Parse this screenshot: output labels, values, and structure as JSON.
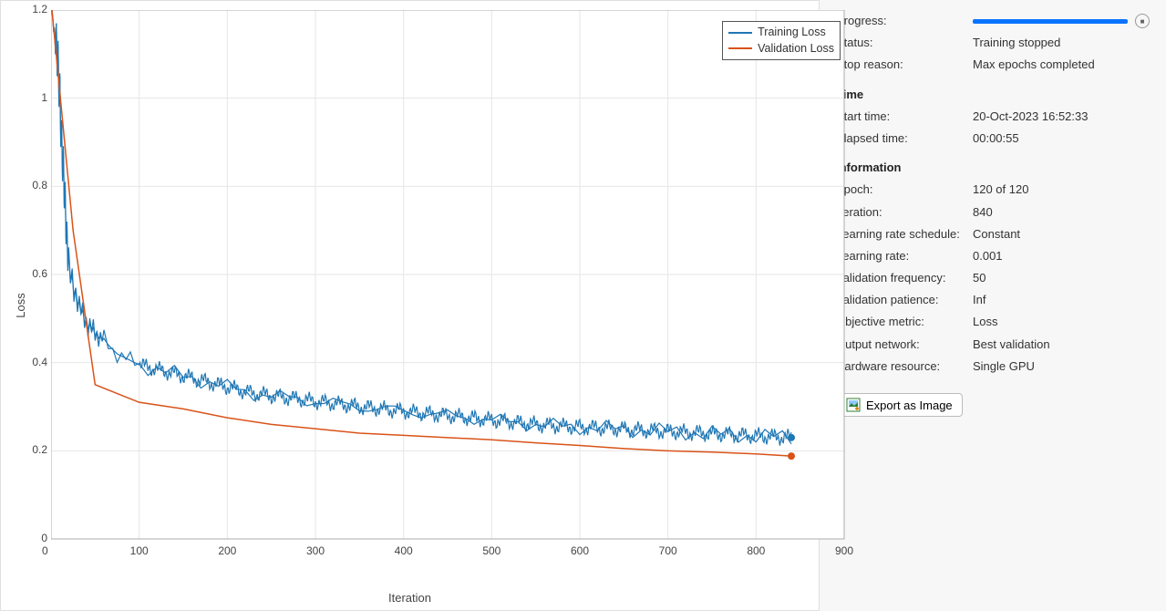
{
  "chart": {
    "type": "line",
    "xlabel": "Iteration",
    "ylabel": "Loss",
    "xlim": [
      0,
      900
    ],
    "ylim": [
      0,
      1.2
    ],
    "xtick_step": 100,
    "ytick_step": 0.2,
    "xticks": [
      0,
      100,
      200,
      300,
      400,
      500,
      600,
      700,
      800,
      900
    ],
    "yticks": [
      0,
      0.2,
      0.4,
      0.6,
      0.8,
      1,
      1.2
    ],
    "grid_color": "#e6e6e6",
    "axis_color": "#888888",
    "background_color": "#ffffff",
    "label_fontsize": 13,
    "tick_fontsize": 12,
    "line_width": 1.2,
    "legend": {
      "entries": [
        "Training Loss",
        "Validation Loss"
      ],
      "position": "top-right",
      "border_color": "#555555",
      "background_color": "#ffffff",
      "fontsize": 12.5
    },
    "series": {
      "training": {
        "label": "Training Loss",
        "color": "#1f77b4",
        "noise_amplitude": 0.02,
        "end_marker": {
          "shape": "circle",
          "radius": 4,
          "color": "#1f77b4"
        },
        "points": [
          [
            1,
            1.2
          ],
          [
            2,
            1.18
          ],
          [
            3,
            1.15
          ],
          [
            4,
            1.16
          ],
          [
            5,
            1.1
          ],
          [
            6,
            1.17
          ],
          [
            7,
            1.05
          ],
          [
            8,
            1.12
          ],
          [
            9,
            0.98
          ],
          [
            10,
            1.05
          ],
          [
            11,
            0.9
          ],
          [
            12,
            0.95
          ],
          [
            13,
            0.82
          ],
          [
            14,
            0.88
          ],
          [
            15,
            0.75
          ],
          [
            16,
            0.8
          ],
          [
            17,
            0.68
          ],
          [
            18,
            0.72
          ],
          [
            19,
            0.62
          ],
          [
            20,
            0.65
          ],
          [
            22,
            0.58
          ],
          [
            24,
            0.6
          ],
          [
            26,
            0.55
          ],
          [
            28,
            0.57
          ],
          [
            30,
            0.53
          ],
          [
            32,
            0.54
          ],
          [
            34,
            0.51
          ],
          [
            36,
            0.52
          ],
          [
            38,
            0.49
          ],
          [
            40,
            0.5
          ],
          [
            42,
            0.475
          ],
          [
            44,
            0.49
          ],
          [
            46,
            0.47
          ],
          [
            48,
            0.48
          ],
          [
            50,
            0.46
          ],
          [
            52,
            0.47
          ],
          [
            54,
            0.455
          ],
          [
            56,
            0.46
          ],
          [
            58,
            0.45
          ],
          [
            60,
            0.455
          ],
          [
            65,
            0.44
          ],
          [
            70,
            0.43
          ],
          [
            75,
            0.42
          ],
          [
            80,
            0.415
          ],
          [
            85,
            0.41
          ],
          [
            90,
            0.405
          ],
          [
            95,
            0.4
          ],
          [
            100,
            0.395
          ],
          [
            110,
            0.39
          ],
          [
            120,
            0.385
          ],
          [
            130,
            0.38
          ],
          [
            140,
            0.375
          ],
          [
            150,
            0.37
          ],
          [
            160,
            0.365
          ],
          [
            170,
            0.36
          ],
          [
            180,
            0.355
          ],
          [
            190,
            0.35
          ],
          [
            200,
            0.345
          ],
          [
            210,
            0.34
          ],
          [
            220,
            0.335
          ],
          [
            230,
            0.33
          ],
          [
            240,
            0.328
          ],
          [
            250,
            0.325
          ],
          [
            260,
            0.322
          ],
          [
            270,
            0.32
          ],
          [
            280,
            0.318
          ],
          [
            290,
            0.315
          ],
          [
            300,
            0.312
          ],
          [
            310,
            0.31
          ],
          [
            320,
            0.308
          ],
          [
            330,
            0.305
          ],
          [
            340,
            0.303
          ],
          [
            350,
            0.3
          ],
          [
            360,
            0.298
          ],
          [
            370,
            0.296
          ],
          [
            380,
            0.294
          ],
          [
            390,
            0.292
          ],
          [
            400,
            0.29
          ],
          [
            410,
            0.288
          ],
          [
            420,
            0.286
          ],
          [
            430,
            0.284
          ],
          [
            440,
            0.282
          ],
          [
            450,
            0.28
          ],
          [
            460,
            0.278
          ],
          [
            470,
            0.276
          ],
          [
            480,
            0.274
          ],
          [
            490,
            0.272
          ],
          [
            500,
            0.27
          ],
          [
            510,
            0.268
          ],
          [
            520,
            0.266
          ],
          [
            530,
            0.264
          ],
          [
            540,
            0.262
          ],
          [
            550,
            0.26
          ],
          [
            560,
            0.258
          ],
          [
            570,
            0.257
          ],
          [
            580,
            0.256
          ],
          [
            590,
            0.255
          ],
          [
            600,
            0.254
          ],
          [
            610,
            0.253
          ],
          [
            620,
            0.252
          ],
          [
            630,
            0.251
          ],
          [
            640,
            0.25
          ],
          [
            650,
            0.249
          ],
          [
            660,
            0.248
          ],
          [
            670,
            0.247
          ],
          [
            680,
            0.246
          ],
          [
            690,
            0.245
          ],
          [
            700,
            0.244
          ],
          [
            710,
            0.243
          ],
          [
            720,
            0.242
          ],
          [
            730,
            0.241
          ],
          [
            740,
            0.24
          ],
          [
            750,
            0.239
          ],
          [
            760,
            0.238
          ],
          [
            770,
            0.237
          ],
          [
            780,
            0.236
          ],
          [
            790,
            0.235
          ],
          [
            800,
            0.234
          ],
          [
            810,
            0.233
          ],
          [
            820,
            0.232
          ],
          [
            830,
            0.231
          ],
          [
            840,
            0.23
          ]
        ]
      },
      "validation": {
        "label": "Validation Loss",
        "color": "#d95319",
        "end_marker": {
          "shape": "circle",
          "radius": 4,
          "color": "#d95319"
        },
        "points": [
          [
            1,
            1.2
          ],
          [
            25,
            0.7
          ],
          [
            50,
            0.35
          ],
          [
            100,
            0.31
          ],
          [
            150,
            0.295
          ],
          [
            200,
            0.275
          ],
          [
            250,
            0.26
          ],
          [
            300,
            0.25
          ],
          [
            350,
            0.24
          ],
          [
            400,
            0.235
          ],
          [
            450,
            0.23
          ],
          [
            500,
            0.225
          ],
          [
            550,
            0.218
          ],
          [
            600,
            0.212
          ],
          [
            650,
            0.205
          ],
          [
            700,
            0.2
          ],
          [
            750,
            0.197
          ],
          [
            800,
            0.193
          ],
          [
            840,
            0.188
          ]
        ]
      }
    }
  },
  "panel": {
    "progress": {
      "label": "Progress:",
      "percent": 100
    },
    "status": {
      "label": "Status:",
      "value": "Training stopped"
    },
    "stop_reason": {
      "label": "Stop reason:",
      "value": "Max epochs completed"
    },
    "time_header": "Time",
    "start_time": {
      "label": "Start time:",
      "value": "20-Oct-2023 16:52:33"
    },
    "elapsed_time": {
      "label": "Elapsed time:",
      "value": "00:00:55"
    },
    "info_header": "Information",
    "epoch": {
      "label": "Epoch:",
      "value": "120 of 120"
    },
    "iteration": {
      "label": "Iteration:",
      "value": "840"
    },
    "lr_schedule": {
      "label": "Learning rate schedule:",
      "value": "Constant"
    },
    "lr": {
      "label": "Learning rate:",
      "value": "0.001"
    },
    "val_freq": {
      "label": "Validation frequency:",
      "value": "50"
    },
    "val_patience": {
      "label": "Validation patience:",
      "value": "Inf"
    },
    "objective": {
      "label": "Objective metric:",
      "value": "Loss"
    },
    "output_net": {
      "label": "Output network:",
      "value": "Best validation"
    },
    "hardware": {
      "label": "Hardware resource:",
      "value": "Single GPU"
    },
    "export_label": "Export as Image"
  }
}
